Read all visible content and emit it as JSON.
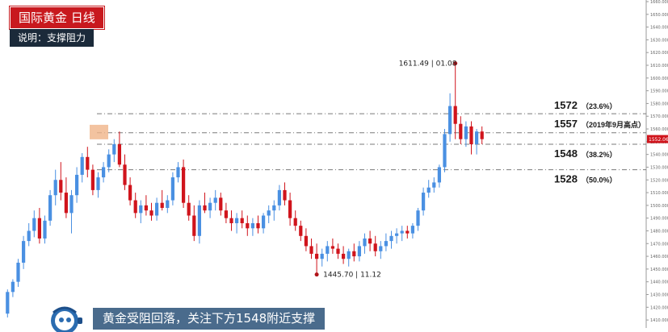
{
  "header": {
    "title": "国际黄金  日线",
    "subtitle": "说明：支撑阻力"
  },
  "caption": "黄金受阻回落，关注下方1548附近支撑",
  "colors": {
    "up": "#4a90e2",
    "down": "#d0141c",
    "title_bg": "#c8191e",
    "subtitle_bg": "#1b2a3a",
    "caption_bg": "#4a6b8c",
    "level_line": "#7a7a7a",
    "highlight": "#f0b488"
  },
  "chart_data": {
    "type": "candlestick",
    "ylim": [
      1405,
      1660
    ],
    "y_ticks": [
      1410,
      1420,
      1430,
      1440,
      1450,
      1460,
      1470,
      1480,
      1490,
      1500,
      1510,
      1520,
      1530,
      1540,
      1550,
      1560,
      1570,
      1580,
      1590,
      1600,
      1610,
      1620,
      1630,
      1640,
      1650,
      1660
    ],
    "y_tick_labels": [
      "1410.000",
      "1420.000",
      "1430.000",
      "1440.000",
      "1450.000",
      "1460.000",
      "1470.000",
      "1480.000",
      "1490.000",
      "1500.000",
      "1510.000",
      "1520.000",
      "1530.000",
      "1540.000",
      "1550.000",
      "1560.000",
      "1570.000",
      "1580.000",
      "1590.000",
      "1600.000",
      "1610.000",
      "1620.000",
      "1630.000",
      "1640.000",
      "1650.000",
      "1660.000"
    ],
    "current_price": "1552.067",
    "candles": [
      [
        1415,
        1434,
        1412,
        1432
      ],
      [
        1432,
        1442,
        1428,
        1440
      ],
      [
        1440,
        1458,
        1436,
        1455
      ],
      [
        1455,
        1476,
        1450,
        1472
      ],
      [
        1472,
        1486,
        1468,
        1480
      ],
      [
        1480,
        1496,
        1475,
        1490
      ],
      [
        1490,
        1498,
        1470,
        1474
      ],
      [
        1474,
        1492,
        1470,
        1488
      ],
      [
        1488,
        1512,
        1484,
        1508
      ],
      [
        1508,
        1528,
        1500,
        1520
      ],
      [
        1520,
        1534,
        1504,
        1510
      ],
      [
        1510,
        1522,
        1490,
        1494
      ],
      [
        1494,
        1512,
        1478,
        1508
      ],
      [
        1508,
        1530,
        1502,
        1524
      ],
      [
        1524,
        1541,
        1518,
        1538
      ],
      [
        1538,
        1546,
        1522,
        1528
      ],
      [
        1528,
        1532,
        1508,
        1512
      ],
      [
        1512,
        1526,
        1506,
        1522
      ],
      [
        1522,
        1534,
        1518,
        1530
      ],
      [
        1530,
        1544,
        1526,
        1540
      ],
      [
        1540,
        1552,
        1534,
        1548
      ],
      [
        1548,
        1558,
        1530,
        1532
      ],
      [
        1532,
        1540,
        1512,
        1516
      ],
      [
        1516,
        1522,
        1500,
        1504
      ],
      [
        1504,
        1510,
        1490,
        1494
      ],
      [
        1494,
        1504,
        1486,
        1500
      ],
      [
        1500,
        1508,
        1492,
        1496
      ],
      [
        1496,
        1502,
        1488,
        1492
      ],
      [
        1492,
        1506,
        1488,
        1502
      ],
      [
        1502,
        1512,
        1496,
        1498
      ],
      [
        1498,
        1508,
        1494,
        1504
      ],
      [
        1504,
        1526,
        1500,
        1522
      ],
      [
        1522,
        1534,
        1518,
        1530
      ],
      [
        1530,
        1536,
        1498,
        1502
      ],
      [
        1502,
        1508,
        1488,
        1492
      ],
      [
        1492,
        1500,
        1472,
        1476
      ],
      [
        1476,
        1504,
        1470,
        1500
      ],
      [
        1500,
        1510,
        1494,
        1496
      ],
      [
        1496,
        1506,
        1490,
        1502
      ],
      [
        1502,
        1512,
        1496,
        1506
      ],
      [
        1506,
        1510,
        1492,
        1496
      ],
      [
        1496,
        1502,
        1486,
        1490
      ],
      [
        1490,
        1496,
        1480,
        1486
      ],
      [
        1486,
        1494,
        1478,
        1490
      ],
      [
        1490,
        1496,
        1482,
        1486
      ],
      [
        1486,
        1492,
        1476,
        1482
      ],
      [
        1482,
        1490,
        1476,
        1486
      ],
      [
        1486,
        1492,
        1478,
        1482
      ],
      [
        1482,
        1494,
        1478,
        1492
      ],
      [
        1492,
        1500,
        1486,
        1496
      ],
      [
        1496,
        1504,
        1488,
        1500
      ],
      [
        1500,
        1516,
        1496,
        1512
      ],
      [
        1512,
        1518,
        1500,
        1504
      ],
      [
        1504,
        1510,
        1484,
        1490
      ],
      [
        1490,
        1496,
        1480,
        1484
      ],
      [
        1484,
        1488,
        1472,
        1476
      ],
      [
        1476,
        1482,
        1464,
        1468
      ],
      [
        1468,
        1474,
        1458,
        1462
      ],
      [
        1462,
        1470,
        1446,
        1458
      ],
      [
        1458,
        1466,
        1452,
        1462
      ],
      [
        1462,
        1472,
        1456,
        1468
      ],
      [
        1468,
        1474,
        1462,
        1466
      ],
      [
        1466,
        1470,
        1458,
        1462
      ],
      [
        1462,
        1468,
        1454,
        1458
      ],
      [
        1458,
        1466,
        1452,
        1464
      ],
      [
        1464,
        1470,
        1456,
        1460
      ],
      [
        1460,
        1472,
        1456,
        1468
      ],
      [
        1468,
        1478,
        1462,
        1474
      ],
      [
        1474,
        1480,
        1464,
        1470
      ],
      [
        1470,
        1476,
        1460,
        1464
      ],
      [
        1464,
        1472,
        1458,
        1468
      ],
      [
        1468,
        1478,
        1464,
        1472
      ],
      [
        1472,
        1480,
        1466,
        1476
      ],
      [
        1476,
        1482,
        1470,
        1478
      ],
      [
        1478,
        1484,
        1472,
        1480
      ],
      [
        1480,
        1484,
        1474,
        1478
      ],
      [
        1478,
        1486,
        1474,
        1484
      ],
      [
        1484,
        1498,
        1480,
        1496
      ],
      [
        1496,
        1514,
        1492,
        1510
      ],
      [
        1510,
        1520,
        1506,
        1514
      ],
      [
        1514,
        1522,
        1510,
        1518
      ],
      [
        1518,
        1532,
        1514,
        1530
      ],
      [
        1530,
        1560,
        1526,
        1556
      ],
      [
        1556,
        1588,
        1550,
        1578
      ],
      [
        1578,
        1611.49,
        1552,
        1564
      ],
      [
        1564,
        1570,
        1548,
        1552
      ],
      [
        1552,
        1566,
        1546,
        1562
      ],
      [
        1562,
        1566,
        1540,
        1548
      ],
      [
        1548,
        1560,
        1540,
        1558
      ],
      [
        1558,
        1562,
        1548,
        1552
      ]
    ],
    "levels": [
      {
        "value": 1572,
        "label": "1572",
        "pct": "（23.6%）"
      },
      {
        "value": 1557,
        "label": "1557",
        "pct": "（2019年9月高点）"
      },
      {
        "value": 1548,
        "label": "1548",
        "pct": "（38.2%）"
      },
      {
        "value": 1528,
        "label": "1528",
        "pct": "（50.0%）"
      }
    ],
    "annotations": [
      {
        "text": "1611.49 | 01.08",
        "price": 1611.49,
        "candle_index": 84,
        "side": "left"
      },
      {
        "text": "1445.70 | 11.12",
        "price": 1445.7,
        "candle_index": 58,
        "side": "right"
      }
    ]
  }
}
